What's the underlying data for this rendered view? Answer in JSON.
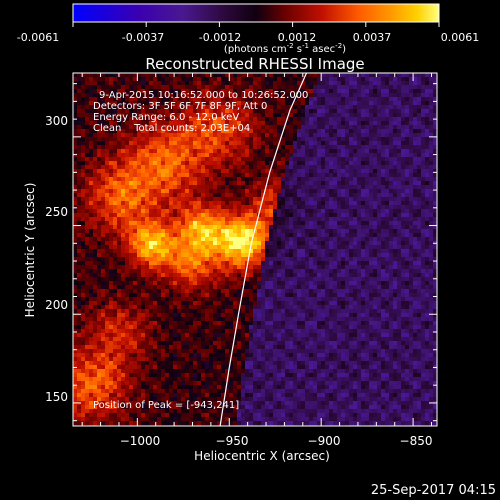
{
  "colorbar": {
    "tick_labels": [
      "-0.0061",
      "-0.0037",
      "-0.0012",
      "0.0012",
      "0.0037",
      "0.0061"
    ],
    "unit_parts": [
      "(photons cm",
      "-2",
      " s",
      "-1",
      " asec",
      "-2",
      ")"
    ]
  },
  "chart_data": {
    "type": "heatmap",
    "title": "Reconstructed RHESSI Image",
    "xlabel": "Heliocentric X (arcsec)",
    "ylabel": "Heliocentric Y (arcsec)",
    "xlim": [
      -1035,
      -837
    ],
    "ylim": [
      137,
      336
    ],
    "x_ticks": [
      -1000,
      -950,
      -900,
      -850
    ],
    "x_tick_labels": [
      "−1000",
      "−950",
      "−900",
      "−850"
    ],
    "y_ticks": [
      150,
      200,
      250,
      300
    ],
    "y_tick_labels": [
      "150",
      "200",
      "250",
      "300"
    ],
    "value_range": [
      -0.0061,
      0.0061
    ],
    "info_lines": [
      "9-Apr-2015 10:16:52.000 to 10:26:52.000",
      "Detectors: 3F 5F 6F 7F 8F 9F, Att 0",
      "Energy Range: 6.0 - 12.0 keV",
      "Clean    Total counts: 2.03E+04"
    ],
    "peak_label": "Position of Peak = [-943,241]",
    "peak": [
      -943,
      241
    ],
    "limb_curve": [
      [
        -955,
        137
      ],
      [
        -950,
        170
      ],
      [
        -945,
        200
      ],
      [
        -938,
        240
      ],
      [
        -928,
        280
      ],
      [
        -917,
        315
      ],
      [
        -908,
        336
      ]
    ],
    "colormap": [
      "#0000ff",
      "#3a00b0",
      "#4a1890",
      "#2a0838",
      "#100010",
      "#6a0000",
      "#c01000",
      "#ff5a00",
      "#ff9a00",
      "#ffd000",
      "#ffff80"
    ],
    "colormap_stops": [
      0.0,
      0.18,
      0.3,
      0.42,
      0.5,
      0.58,
      0.68,
      0.78,
      0.87,
      0.94,
      1.0
    ]
  },
  "footer": {
    "timestamp": "25-Sep-2017 04:15"
  }
}
